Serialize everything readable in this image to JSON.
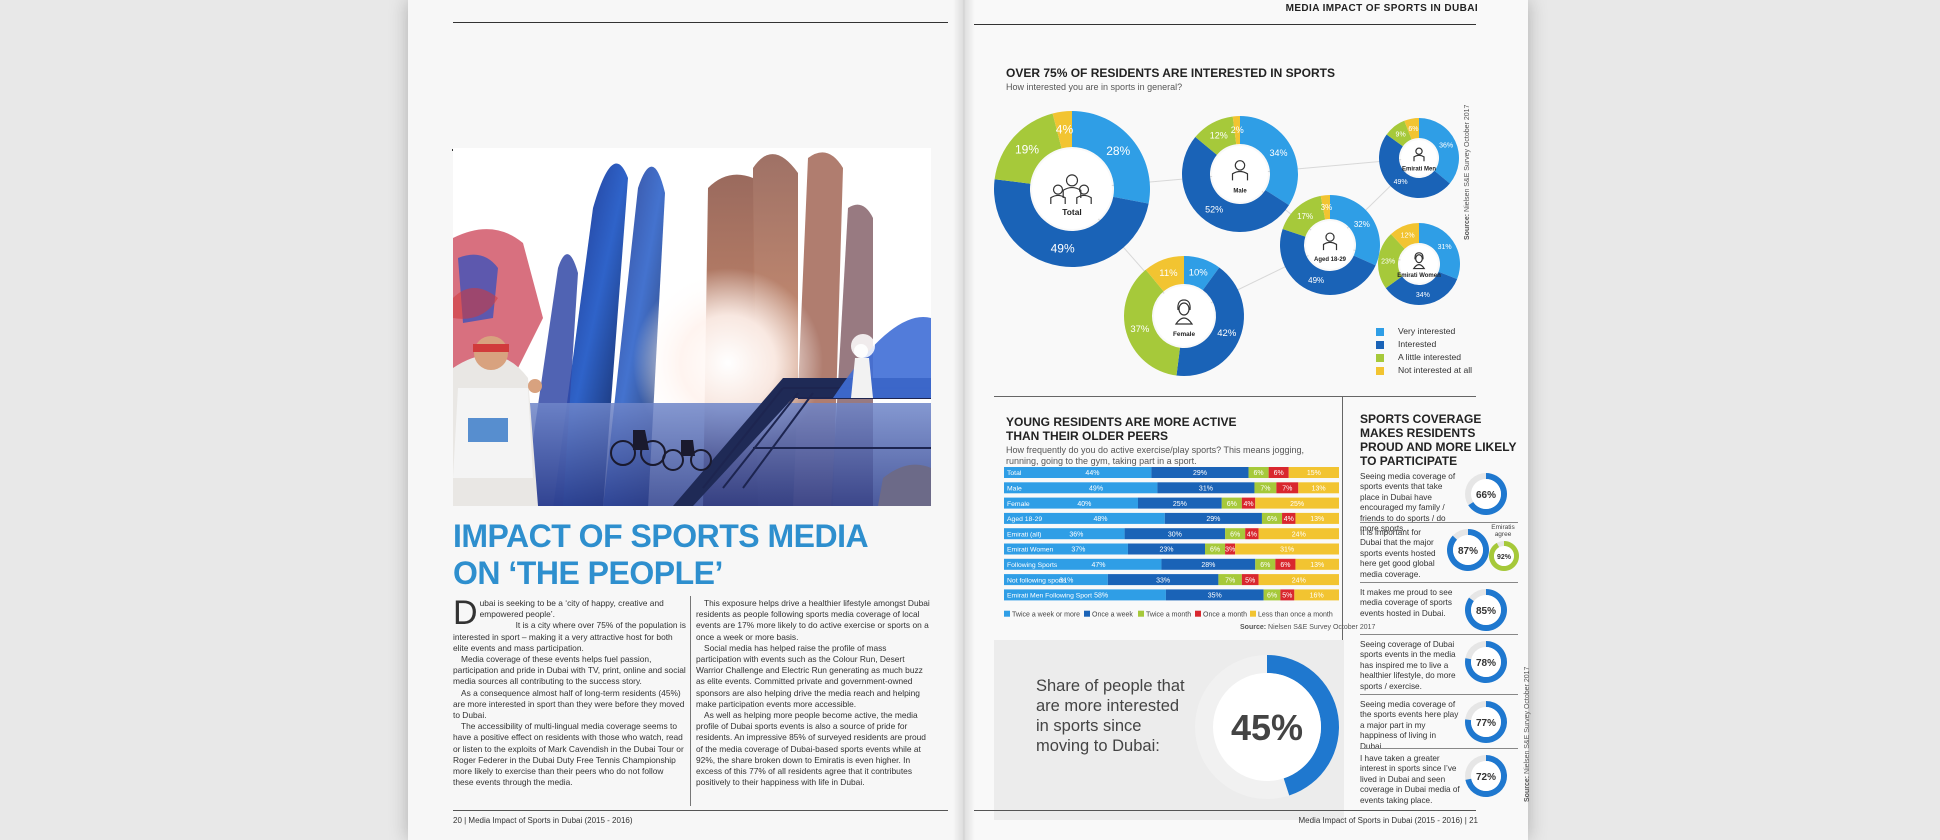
{
  "left_page": {
    "headline_line1": "IMPACT OF SPORTS MEDIA",
    "headline_line2": "ON ‘THE PEOPLE’",
    "dropcap": "D",
    "col1": {
      "p1": "ubai is seeking to be a ‘city of happy, creative and empowered people’.",
      "p2": "It is a city where over 75% of the population is interested in sport – making it a very attractive host for both elite events and mass participation.",
      "p3": "Media coverage of these events helps fuel passion, participation and pride in Dubai with TV, print, online and social media sources all contributing to the success story.",
      "p4": "As a consequence almost half of long-term residents (45%) are more interested in sport than they were before they moved to Dubai.",
      "p5": "The accessibility of multi-lingual media coverage seems to have a positive effect on residents with those who watch, read or listen to the exploits of Mark Cavendish in the Dubai Tour or Roger Federer in the Dubai Duty Free Tennis Championship more likely to exercise than their peers who do not follow these events through the media."
    },
    "col2": {
      "p1": "This exposure helps drive a healthier lifestyle amongst Dubai residents as people following sports media coverage of local events are 17% more likely to do active exercise or sports on a once a week or more basis.",
      "p2": "Social media has helped raise the profile of mass participation with events such as the Colour Run, Desert Warrior Challenge and Electric Run generating as much buzz as elite events. Committed private and government-owned sponsors are also helping drive the media reach and helping make participation events more accessible.",
      "p3": "As well as helping more people become active, the media profile of Dubai sports events is also a source of pride for residents. An impressive 85% of surveyed residents are proud of the media coverage of Dubai-based sports events while at 92%, the share broken down to Emiratis is even higher. In excess of this 77% of all residents agree that it contributes positively to their happiness with life in Dubai."
    },
    "footer": "20 | Media Impact of Sports in Dubai (2015 - 2016)"
  },
  "right_page": {
    "running_head": "MEDIA IMPACT OF SPORTS IN DUBAI",
    "footer": "Media Impact of Sports in Dubai (2015 - 2016) | 21",
    "interest": {
      "title_prefix": "OVER 75% OF",
      "title_rest": " RESIDENTS ARE INTERESTED IN SPORTS",
      "subtitle": "How interested you are in sports in general?",
      "source_label": "Source:",
      "source_text": "Nielsen S&E Survey October 2017"
    },
    "activity": {
      "title_line1": "YOUNG RESIDENTS ARE MORE ACTIVE",
      "title_line2": "THAN THEIR OLDER PEERS",
      "subtitle": "How frequently do you do active exercise/play sports? This means jogging, running, going to the gym, taking part in a sport.",
      "source_label": "Source:",
      "source_text": "Nielsen S&E Survey October 2017"
    },
    "coverage": {
      "title": "SPORTS COVERAGE MAKES RESIDENTS PROUD AND MORE LIKELY TO PARTICIPATE",
      "emiratis_label": "Emiratis agree",
      "source_label": "Source:",
      "source_text": "Nielsen S&E Survey October 2017"
    },
    "share": {
      "text": "Share of people that are more interested in sports since moving to Dubai:",
      "value": "45%"
    }
  },
  "colors": {
    "very_interested": "#2f9ee6",
    "interested": "#1a63b7",
    "a_little": "#a6c93a",
    "not_interested": "#f2c431",
    "red": "#d9272e",
    "headline": "#2e8fce"
  },
  "chart_data": [
    {
      "type": "pie",
      "title": "OVER 75% OF RESIDENTS ARE INTERESTED IN SPORTS",
      "legend": [
        "Very interested",
        "Interested",
        "A little interested",
        "Not interested at all"
      ],
      "legend_placement": "bottom-right",
      "donuts": [
        {
          "label": "Total",
          "values": [
            28,
            49,
            19,
            4
          ]
        },
        {
          "label": "Male",
          "values": [
            34,
            52,
            12,
            2
          ]
        },
        {
          "label": "Female",
          "values": [
            10,
            42,
            37,
            11
          ]
        },
        {
          "label": "Aged 18-29",
          "values": [
            32,
            49,
            17,
            3
          ]
        },
        {
          "label": "Emirati Men",
          "values": [
            36,
            49,
            9,
            6
          ]
        },
        {
          "label": "Emirati Women",
          "values": [
            31,
            34,
            23,
            12
          ]
        }
      ]
    },
    {
      "type": "bar",
      "stacked": true,
      "orientation": "horizontal",
      "title": "YOUNG RESIDENTS ARE MORE ACTIVE THAN THEIR OLDER PEERS",
      "legend": [
        "Twice a week or more",
        "Once a week",
        "Twice a month",
        "Once a month",
        "Less than once a month"
      ],
      "legend_placement": "bottom",
      "categories": [
        "Total",
        "Male",
        "Female",
        "Aged 18-29",
        "Emirati (all)",
        "Emirati Women",
        "Following Sports",
        "Not following sports",
        "Emirati Men Following Sport"
      ],
      "series": [
        {
          "name": "Twice a week or more",
          "values": [
            44,
            49,
            40,
            48,
            36,
            37,
            47,
            31,
            58
          ]
        },
        {
          "name": "Once a week",
          "values": [
            29,
            31,
            25,
            29,
            30,
            23,
            28,
            33,
            35
          ]
        },
        {
          "name": "Twice a month",
          "values": [
            6,
            7,
            6,
            6,
            6,
            6,
            6,
            7,
            6
          ]
        },
        {
          "name": "Once a month",
          "values": [
            6,
            7,
            4,
            4,
            4,
            3,
            6,
            5,
            5
          ]
        },
        {
          "name": "Less than once a month",
          "values": [
            15,
            13,
            25,
            13,
            24,
            31,
            13,
            24,
            16
          ]
        }
      ]
    },
    {
      "type": "pie",
      "title": "SPORTS COVERAGE MAKES RESIDENTS PROUD AND MORE LIKELY TO PARTICIPATE",
      "items": [
        {
          "text": "Seeing media coverage of sports events that take place in Dubai have encouraged my family / friends to do sports / do more sports.",
          "value": 66
        },
        {
          "text": "It is important for Dubai that the major sports events hosted here get good global media coverage.",
          "value": 87,
          "emirati_value": 92
        },
        {
          "text": "It makes me proud to see media coverage of sports events hosted in Dubai.",
          "value": 85
        },
        {
          "text": "Seeing coverage of Dubai sports events in the media has inspired me to live a healthier lifestyle, do more sports / exercise.",
          "value": 78
        },
        {
          "text": "Seeing media coverage of the sports events here play a major part in my happiness of living in Dubai.",
          "value": 77
        },
        {
          "text": "I have taken a greater interest in sports since I’ve lived in Dubai and seen coverage in Dubai media of events taking place.",
          "value": 72
        }
      ]
    }
  ]
}
